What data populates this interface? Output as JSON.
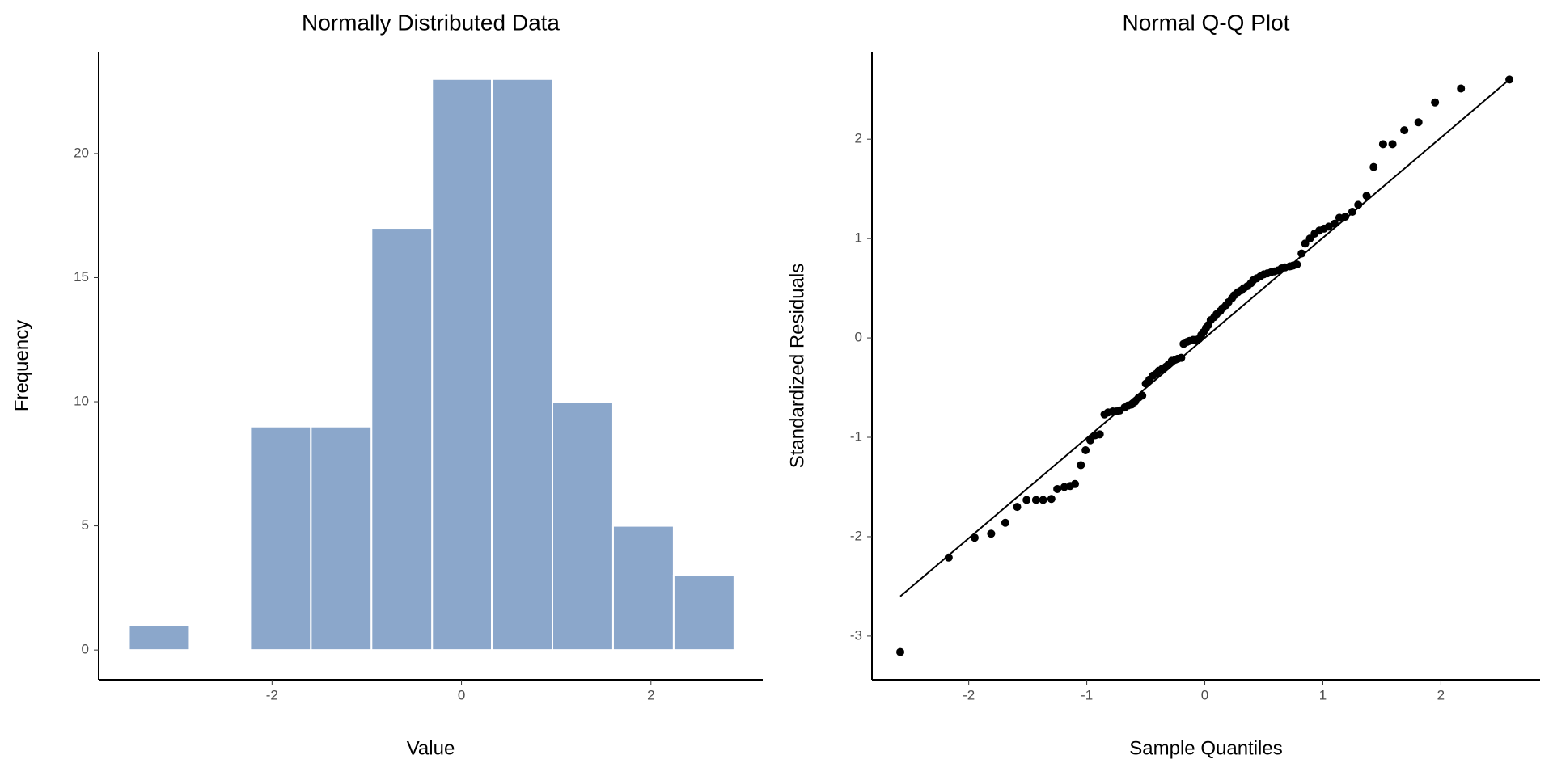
{
  "chart_data": [
    {
      "type": "histogram",
      "title": "Normally Distributed Data",
      "x_label": "Value",
      "y_label": "Frequency",
      "bins": [
        -3.51,
        -2.87,
        -2.23,
        -1.59,
        -0.95,
        -0.31,
        0.32,
        0.96,
        1.6,
        2.24,
        2.88
      ],
      "values": [
        1,
        0,
        9,
        9,
        17,
        23,
        23,
        10,
        5,
        3
      ],
      "color": "#8ba7cb",
      "edge_color": "#ffffff",
      "xlim": [
        -3.83,
        3.18
      ],
      "xticks": [
        -2,
        0,
        2
      ],
      "ylim": [
        -1.2,
        24.1
      ],
      "yticks": [
        0,
        5,
        10,
        15,
        20
      ],
      "grid": false
    },
    {
      "type": "scatter",
      "title": "Normal Q-Q Plot",
      "x_label": "Sample Quantiles",
      "y_label": "Standardized Residuals",
      "x": [
        -2.58,
        -2.17,
        -1.95,
        -1.81,
        -1.69,
        -1.59,
        -1.51,
        -1.43,
        -1.37,
        -1.3,
        -1.25,
        -1.19,
        -1.14,
        -1.1,
        -1.05,
        -1.01,
        -0.97,
        -0.93,
        -0.89,
        -0.85,
        -0.82,
        -0.78,
        -0.75,
        -0.72,
        -0.68,
        -0.65,
        -0.62,
        -0.59,
        -0.56,
        -0.53,
        -0.5,
        -0.47,
        -0.44,
        -0.41,
        -0.39,
        -0.36,
        -0.33,
        -0.31,
        -0.28,
        -0.25,
        -0.23,
        -0.2,
        -0.18,
        -0.15,
        -0.13,
        -0.1,
        -0.08,
        -0.05,
        -0.03,
        -0.01,
        0.01,
        0.03,
        0.05,
        0.08,
        0.1,
        0.13,
        0.15,
        0.18,
        0.2,
        0.23,
        0.25,
        0.28,
        0.31,
        0.33,
        0.36,
        0.39,
        0.41,
        0.44,
        0.47,
        0.5,
        0.53,
        0.56,
        0.59,
        0.62,
        0.65,
        0.68,
        0.72,
        0.75,
        0.78,
        0.82,
        0.85,
        0.89,
        0.93,
        0.97,
        1.01,
        1.05,
        1.1,
        1.14,
        1.19,
        1.25,
        1.3,
        1.37,
        1.43,
        1.51,
        1.59,
        1.69,
        1.81,
        1.95,
        2.17,
        2.58
      ],
      "y": [
        -3.16,
        -2.21,
        -2.01,
        -1.97,
        -1.86,
        -1.7,
        -1.63,
        -1.63,
        -1.63,
        -1.62,
        -1.52,
        -1.5,
        -1.49,
        -1.47,
        -1.28,
        -1.13,
        -1.03,
        -0.98,
        -0.97,
        -0.77,
        -0.75,
        -0.74,
        -0.74,
        -0.73,
        -0.7,
        -0.68,
        -0.67,
        -0.64,
        -0.6,
        -0.58,
        -0.46,
        -0.42,
        -0.38,
        -0.36,
        -0.33,
        -0.31,
        -0.29,
        -0.27,
        -0.23,
        -0.22,
        -0.21,
        -0.2,
        -0.06,
        -0.04,
        -0.03,
        -0.02,
        -0.02,
        -0.01,
        0.03,
        0.06,
        0.1,
        0.13,
        0.18,
        0.21,
        0.24,
        0.27,
        0.3,
        0.33,
        0.36,
        0.4,
        0.43,
        0.46,
        0.48,
        0.5,
        0.52,
        0.55,
        0.58,
        0.6,
        0.62,
        0.64,
        0.65,
        0.66,
        0.67,
        0.68,
        0.7,
        0.71,
        0.72,
        0.73,
        0.74,
        0.85,
        0.95,
        1.0,
        1.05,
        1.08,
        1.1,
        1.12,
        1.15,
        1.21,
        1.22,
        1.27,
        1.34,
        1.43,
        1.72,
        1.95,
        1.95,
        2.09,
        2.17,
        2.37,
        2.51,
        2.6
      ],
      "color": "#000000",
      "reference_line": {
        "x": [
          -2.58,
          2.58
        ],
        "y": [
          -2.6,
          2.6
        ],
        "color": "#000000"
      },
      "xlim": [
        -2.82,
        2.84
      ],
      "xticks": [
        -2,
        -1,
        0,
        1,
        2
      ],
      "ylim": [
        -3.44,
        2.88
      ],
      "yticks": [
        -3,
        -2,
        -1,
        0,
        1,
        2
      ],
      "grid": false
    }
  ]
}
